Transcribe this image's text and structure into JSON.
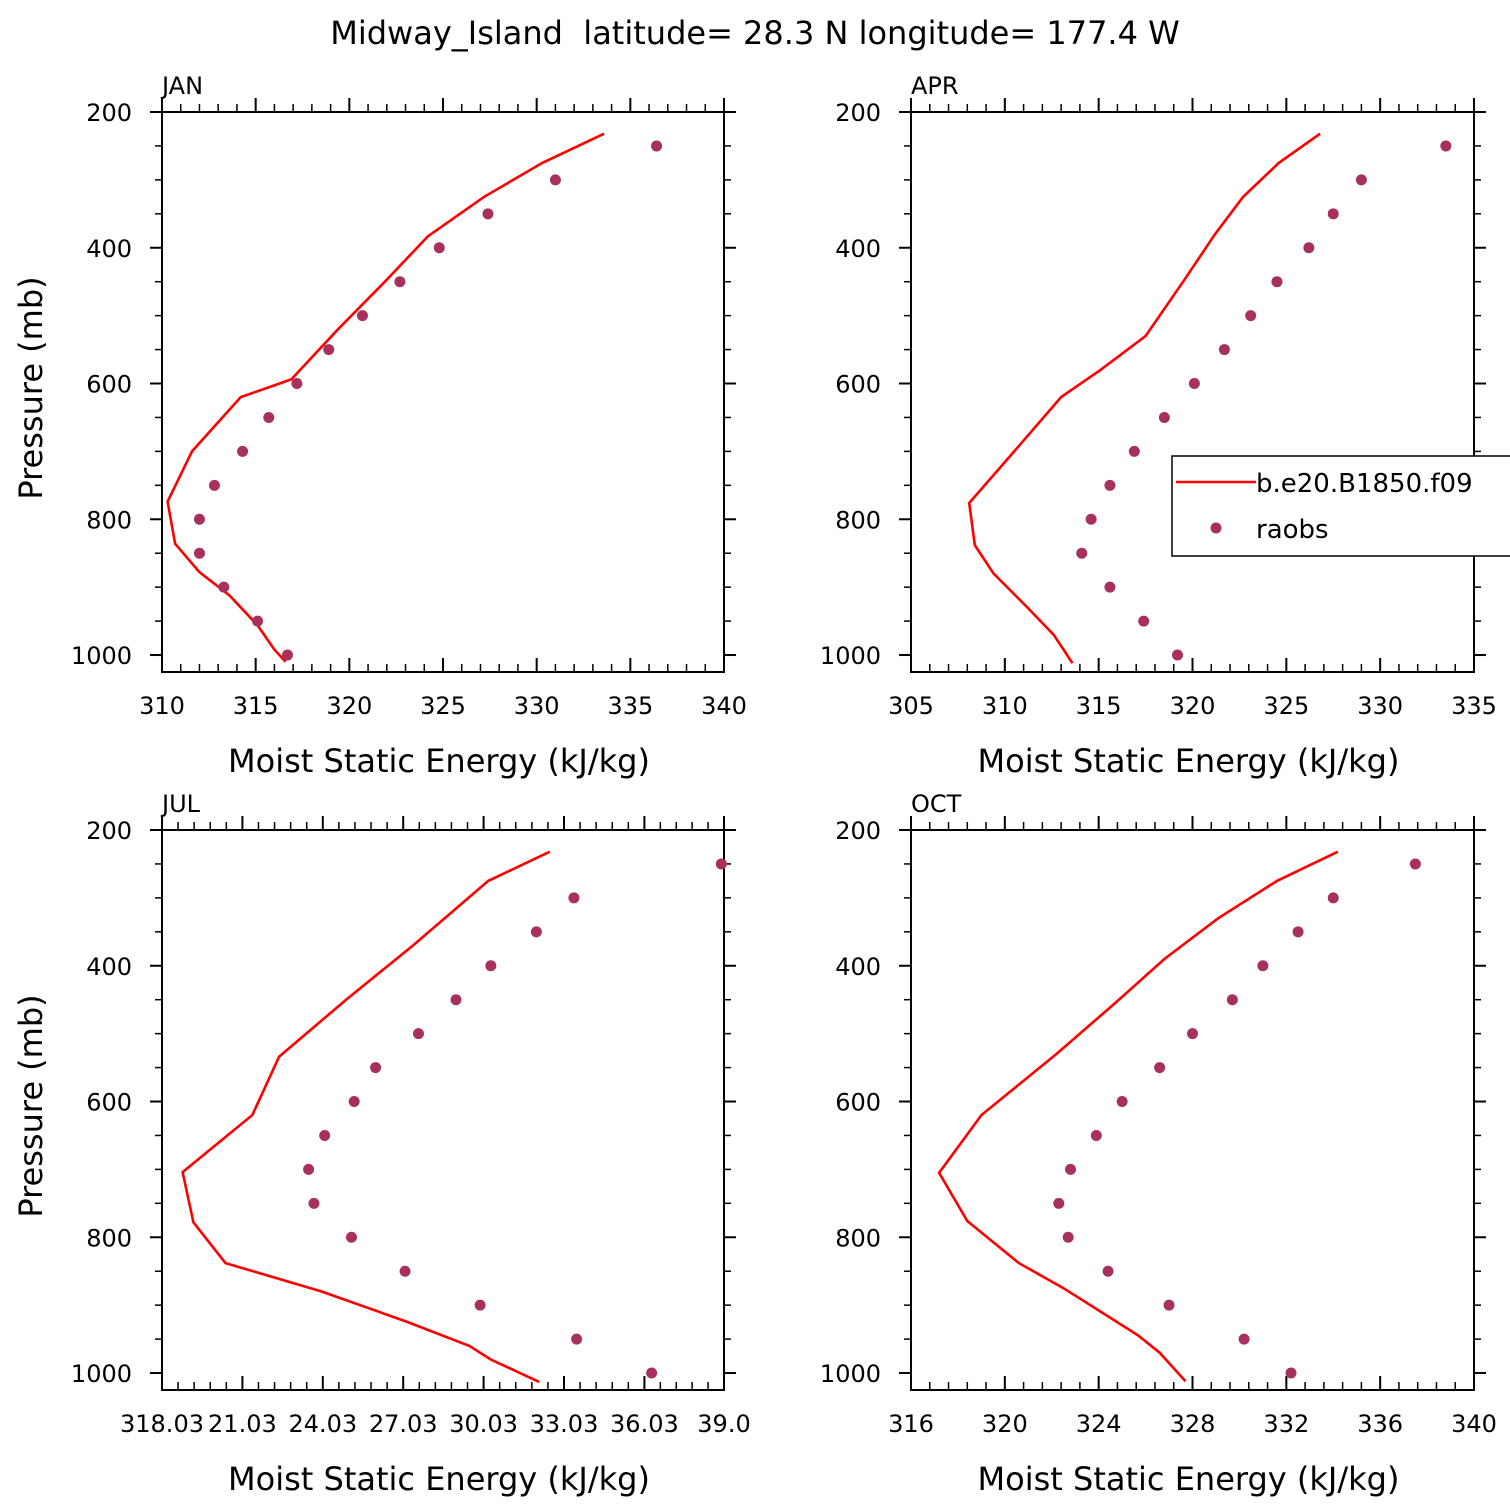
{
  "figure": {
    "title": "Midway_Island  latitude= 28.3 N longitude= 177.4 W"
  },
  "colors": {
    "model_line": "#ff0000",
    "obs_marker": "#a8305e",
    "axes": "#000000"
  },
  "legend": {
    "placement": "right-middle of APR panel (partially clipped)",
    "entries": [
      {
        "label": "b.e20.B1850.f09",
        "marker": "line"
      },
      {
        "label": "raobs",
        "marker": "dot"
      }
    ]
  },
  "chart_data": [
    {
      "type": "line",
      "panel_label": "JAN",
      "xlabel": "Moist Static Energy (kJ/kg)",
      "ylabel": "Pressure (mb)",
      "xlim": [
        310,
        340
      ],
      "ylim": [
        200,
        1025
      ],
      "y_inverted": true,
      "xticks": [
        "310",
        "315",
        "320",
        "325",
        "330",
        "335",
        "340"
      ],
      "xtick_values": [
        310,
        315,
        320,
        325,
        330,
        335,
        340
      ],
      "yticks": [
        "200",
        "400",
        "600",
        "800",
        "1000"
      ],
      "ytick_values": [
        200,
        400,
        600,
        800,
        1000
      ],
      "series": [
        {
          "name": "b.e20.B1850.f09",
          "style": "line",
          "x": [
            333.6,
            330.3,
            327.2,
            324.2,
            321.9,
            319.4,
            316.9,
            314.2,
            311.6,
            310.3,
            310.7,
            312.0,
            313.6,
            315.1,
            316.0,
            316.6
          ],
          "y": [
            232,
            275,
            325,
            383,
            450,
            520,
            594,
            620,
            700,
            774,
            836,
            878,
            912,
            956,
            992,
            1010
          ]
        },
        {
          "name": "raobs",
          "style": "markers",
          "x": [
            336.4,
            331.0,
            327.4,
            324.8,
            322.7,
            320.7,
            318.9,
            317.2,
            315.7,
            314.3,
            312.8,
            312.0,
            312.0,
            313.3,
            315.1,
            316.7
          ],
          "y": [
            250,
            300,
            350,
            400,
            450,
            500,
            550,
            600,
            650,
            700,
            750,
            800,
            850,
            900,
            950,
            1000
          ]
        }
      ]
    },
    {
      "type": "line",
      "panel_label": "APR",
      "xlabel": "Moist Static Energy (kJ/kg)",
      "ylabel": "",
      "xlim": [
        305,
        335
      ],
      "ylim": [
        200,
        1025
      ],
      "y_inverted": true,
      "xticks": [
        "305",
        "310",
        "315",
        "320",
        "325",
        "330",
        "335"
      ],
      "xtick_values": [
        305,
        310,
        315,
        320,
        325,
        330,
        335
      ],
      "yticks": [
        "200",
        "400",
        "600",
        "800",
        "1000"
      ],
      "ytick_values": [
        200,
        400,
        600,
        800,
        1000
      ],
      "series": [
        {
          "name": "b.e20.B1850.f09",
          "style": "line",
          "x": [
            326.8,
            324.6,
            322.7,
            321.2,
            319.5,
            317.5,
            315.1,
            313.0,
            310.5,
            308.1,
            308.4,
            309.4,
            311.2,
            312.6,
            313.2,
            313.6
          ],
          "y": [
            232,
            275,
            325,
            380,
            450,
            530,
            580,
            620,
            700,
            776,
            838,
            880,
            930,
            970,
            995,
            1012
          ]
        },
        {
          "name": "raobs",
          "style": "markers",
          "x": [
            333.5,
            329.0,
            327.5,
            326.2,
            324.5,
            323.1,
            321.7,
            320.1,
            318.5,
            316.9,
            315.6,
            314.6,
            314.1,
            315.6,
            317.4,
            319.2
          ],
          "y": [
            250,
            300,
            350,
            400,
            450,
            500,
            550,
            600,
            650,
            700,
            750,
            800,
            850,
            900,
            950,
            1000
          ]
        }
      ]
    },
    {
      "type": "line",
      "panel_label": "JUL",
      "xlabel": "Moist Static Energy (kJ/kg)",
      "ylabel": "Pressure (mb)",
      "xlim": [
        318.03,
        339.0
      ],
      "ylim": [
        200,
        1025
      ],
      "y_inverted": true,
      "xticks": [
        "318.03",
        "21.03",
        "24.03",
        "27.03",
        "30.03",
        "33.03",
        "36.03",
        "39.0"
      ],
      "xtick_values": [
        318.03,
        321.03,
        324.03,
        327.03,
        330.03,
        333.03,
        336.03,
        339.0
      ],
      "yticks": [
        "200",
        "400",
        "600",
        "800",
        "1000"
      ],
      "ytick_values": [
        200,
        400,
        600,
        800,
        1000
      ],
      "series": [
        {
          "name": "b.e20.B1850.f09",
          "style": "line",
          "x": [
            332.5,
            330.2,
            327.4,
            324.9,
            322.4,
            321.4,
            318.8,
            319.2,
            320.4,
            324.0,
            327.2,
            329.5,
            330.3,
            332.1
          ],
          "y": [
            232,
            275,
            370,
            450,
            534,
            620,
            704,
            778,
            838,
            880,
            925,
            960,
            980,
            1013
          ]
        },
        {
          "name": "raobs",
          "style": "markers",
          "x": [
            338.9,
            333.4,
            332.0,
            330.3,
            329.0,
            327.6,
            326.0,
            325.2,
            324.1,
            323.5,
            323.7,
            325.1,
            327.1,
            329.9,
            333.5,
            336.3
          ],
          "y": [
            250,
            300,
            350,
            400,
            450,
            500,
            550,
            600,
            650,
            700,
            750,
            800,
            850,
            900,
            950,
            1000
          ]
        }
      ]
    },
    {
      "type": "line",
      "panel_label": "OCT",
      "xlabel": "Moist Static Energy (kJ/kg)",
      "ylabel": "",
      "xlim": [
        316,
        340
      ],
      "ylim": [
        200,
        1025
      ],
      "y_inverted": true,
      "xticks": [
        "316",
        "320",
        "324",
        "328",
        "332",
        "336",
        "340"
      ],
      "xtick_values": [
        316,
        320,
        324,
        328,
        332,
        336,
        340
      ],
      "yticks": [
        "200",
        "400",
        "600",
        "800",
        "1000"
      ],
      "ytick_values": [
        200,
        400,
        600,
        800,
        1000
      ],
      "series": [
        {
          "name": "b.e20.B1850.f09",
          "style": "line",
          "x": [
            334.2,
            331.6,
            329.1,
            326.8,
            324.7,
            322.2,
            319.0,
            317.2,
            318.4,
            320.6,
            322.5,
            324.1,
            325.7,
            326.6,
            327.7
          ],
          "y": [
            232,
            275,
            330,
            390,
            455,
            530,
            620,
            705,
            776,
            838,
            875,
            910,
            945,
            970,
            1012
          ]
        },
        {
          "name": "raobs",
          "style": "markers",
          "x": [
            337.5,
            334.0,
            332.5,
            331.0,
            329.7,
            328.0,
            326.6,
            325.0,
            323.9,
            322.8,
            322.3,
            322.7,
            324.4,
            327.0,
            330.2,
            332.2
          ],
          "y": [
            250,
            300,
            350,
            400,
            450,
            500,
            550,
            600,
            650,
            700,
            750,
            800,
            850,
            900,
            950,
            1000
          ]
        }
      ]
    }
  ]
}
